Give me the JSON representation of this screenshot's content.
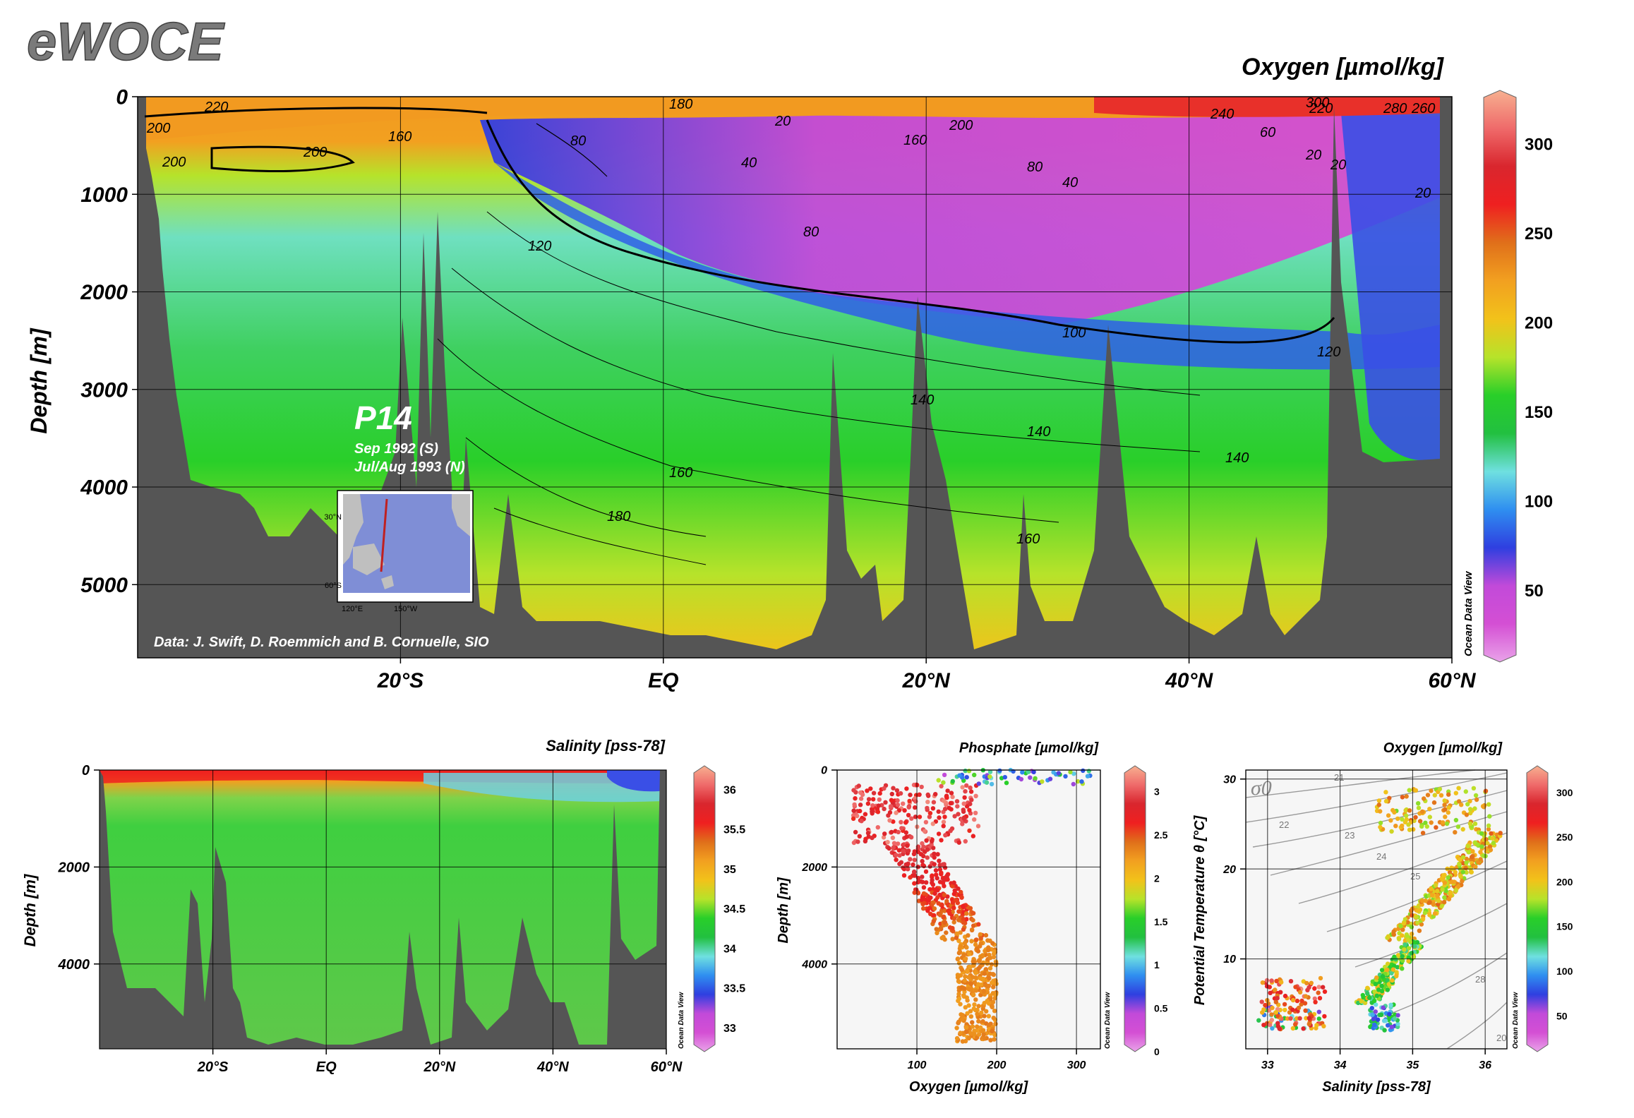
{
  "logo_text": "eWOCE",
  "colors": {
    "seafloor": "#555555",
    "background": "#ffffff",
    "colormap": [
      "#e9a3e9",
      "#d44fd4",
      "#c24ad9",
      "#2f3fe0",
      "#2f8ff0",
      "#6fe0e0",
      "#22c040",
      "#29cf29",
      "#b6e32a",
      "#f2c21a",
      "#f2a020",
      "#e0701a",
      "#ef2020",
      "#d9262e",
      "#ef6a6a",
      "#f7b090"
    ]
  },
  "section": {
    "title": "P14",
    "subtitle1": "Sep 1992 (S)",
    "subtitle2": "Jul/Aug 1993 (N)",
    "credit": "Data: J. Swift, D. Roemmich and B. Cornuelle, SIO",
    "inset_map": {
      "lat_labels": [
        "30°N",
        "60°S"
      ],
      "lon_labels": [
        "120°E",
        "150°W"
      ]
    }
  },
  "watermark": "Ocean Data View",
  "chart_data": [
    {
      "id": "oxygen-section",
      "type": "heatmap",
      "title": "Oxygen [µmol/kg]",
      "xlabel": "",
      "ylabel": "Depth [m]",
      "x_ticks": [
        "20°S",
        "EQ",
        "20°N",
        "40°N",
        "60°N"
      ],
      "x_tick_values": [
        -20,
        0,
        20,
        40,
        60
      ],
      "xlim": [
        -40,
        60
      ],
      "y_ticks": [
        "0",
        "1000",
        "2000",
        "3000",
        "4000",
        "5000"
      ],
      "y_tick_values": [
        0,
        1000,
        2000,
        3000,
        4000,
        5000
      ],
      "ylim": [
        0,
        5750
      ],
      "colorbar": {
        "ticks": [
          "50",
          "100",
          "150",
          "200",
          "250",
          "300"
        ],
        "values": [
          50,
          100,
          150,
          200,
          250,
          300
        ],
        "range": [
          10,
          330
        ]
      },
      "contour_labels": [
        "220",
        "200",
        "200",
        "200",
        "160",
        "180",
        "80",
        "20",
        "160",
        "200",
        "40",
        "80",
        "40",
        "20",
        "240",
        "300",
        "220",
        "280",
        "260",
        "60",
        "20",
        "20",
        "120",
        "80",
        "100",
        "120",
        "140",
        "140",
        "140",
        "160",
        "180",
        "160"
      ]
    },
    {
      "id": "salinity-section",
      "type": "heatmap",
      "title": "Salinity [pss-78]",
      "xlabel": "",
      "ylabel": "Depth [m]",
      "x_ticks": [
        "20°S",
        "EQ",
        "20°N",
        "40°N",
        "60°N"
      ],
      "x_tick_values": [
        -20,
        0,
        20,
        40,
        60
      ],
      "xlim": [
        -40,
        60
      ],
      "y_ticks": [
        "0",
        "2000",
        "4000"
      ],
      "y_tick_values": [
        0,
        2000,
        4000
      ],
      "ylim": [
        0,
        5750
      ],
      "colorbar": {
        "ticks": [
          "33",
          "33.5",
          "34",
          "34.5",
          "35",
          "35.5",
          "36"
        ],
        "values": [
          33,
          33.5,
          34,
          34.5,
          35,
          35.5,
          36
        ],
        "range": [
          32.7,
          36.3
        ]
      }
    },
    {
      "id": "phosphate-scatter",
      "type": "scatter",
      "title": "Phosphate [µmol/kg]",
      "xlabel": "Oxygen [µmol/kg]",
      "ylabel": "Depth [m]",
      "x_ticks": [
        "100",
        "200",
        "300"
      ],
      "x_tick_values": [
        100,
        200,
        300
      ],
      "xlim": [
        0,
        330
      ],
      "y_ticks": [
        "0",
        "2000",
        "4000"
      ],
      "y_tick_values": [
        0,
        2000,
        4000
      ],
      "ylim": [
        0,
        5750
      ],
      "colorbar": {
        "ticks": [
          "0",
          "0.5",
          "1",
          "1.5",
          "2",
          "2.5",
          "3"
        ],
        "values": [
          0,
          0.5,
          1,
          1.5,
          2,
          2.5,
          3
        ],
        "range": [
          0,
          3.3
        ]
      }
    },
    {
      "id": "ts-diagram",
      "type": "scatter",
      "title": "Oxygen [µmol/kg]",
      "xlabel": "Salinity [pss-78]",
      "ylabel": "Potential Temperature θ [°C]",
      "x_ticks": [
        "33",
        "34",
        "35",
        "36"
      ],
      "x_tick_values": [
        33,
        34,
        35,
        36
      ],
      "xlim": [
        32.7,
        36.3
      ],
      "y_ticks": [
        "10",
        "20",
        "30"
      ],
      "y_tick_values": [
        10,
        20,
        30
      ],
      "ylim": [
        0,
        31
      ],
      "sigma_label": "σ0",
      "isopycnal_labels": [
        "21",
        "22",
        "23",
        "24",
        "25",
        "28",
        "20"
      ],
      "colorbar": {
        "ticks": [
          "50",
          "100",
          "150",
          "200",
          "250",
          "300"
        ],
        "values": [
          50,
          100,
          150,
          200,
          250,
          300
        ],
        "range": [
          10,
          330
        ]
      }
    }
  ]
}
